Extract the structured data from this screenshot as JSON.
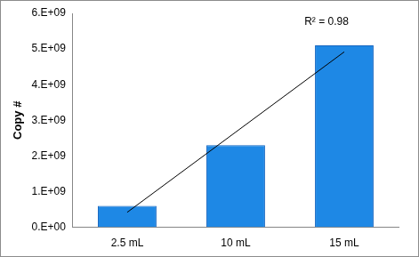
{
  "chart_data": {
    "type": "bar",
    "categories": [
      "2.5 mL",
      "10 mL",
      "15 mL"
    ],
    "values": [
      600000000,
      2300000000,
      5100000000
    ],
    "color": "#1e88e5",
    "y_label": "Copy #",
    "ylim": [
      0,
      6000000000
    ],
    "yticks": [
      {
        "value": 0,
        "label": "0.E+00"
      },
      {
        "value": 1000000000,
        "label": "1.E+09"
      },
      {
        "value": 2000000000,
        "label": "2.E+09"
      },
      {
        "value": 3000000000,
        "label": "3.E+09"
      },
      {
        "value": 4000000000,
        "label": "4.E+09"
      },
      {
        "value": 5000000000,
        "label": "5.E+09"
      },
      {
        "value": 6000000000,
        "label": "6.E+09"
      }
    ],
    "trendline": {
      "values": [
        420000000,
        2670000000,
        4920000000
      ],
      "color": "#000000"
    },
    "annotation": "R² = 0.98",
    "grid": false
  }
}
